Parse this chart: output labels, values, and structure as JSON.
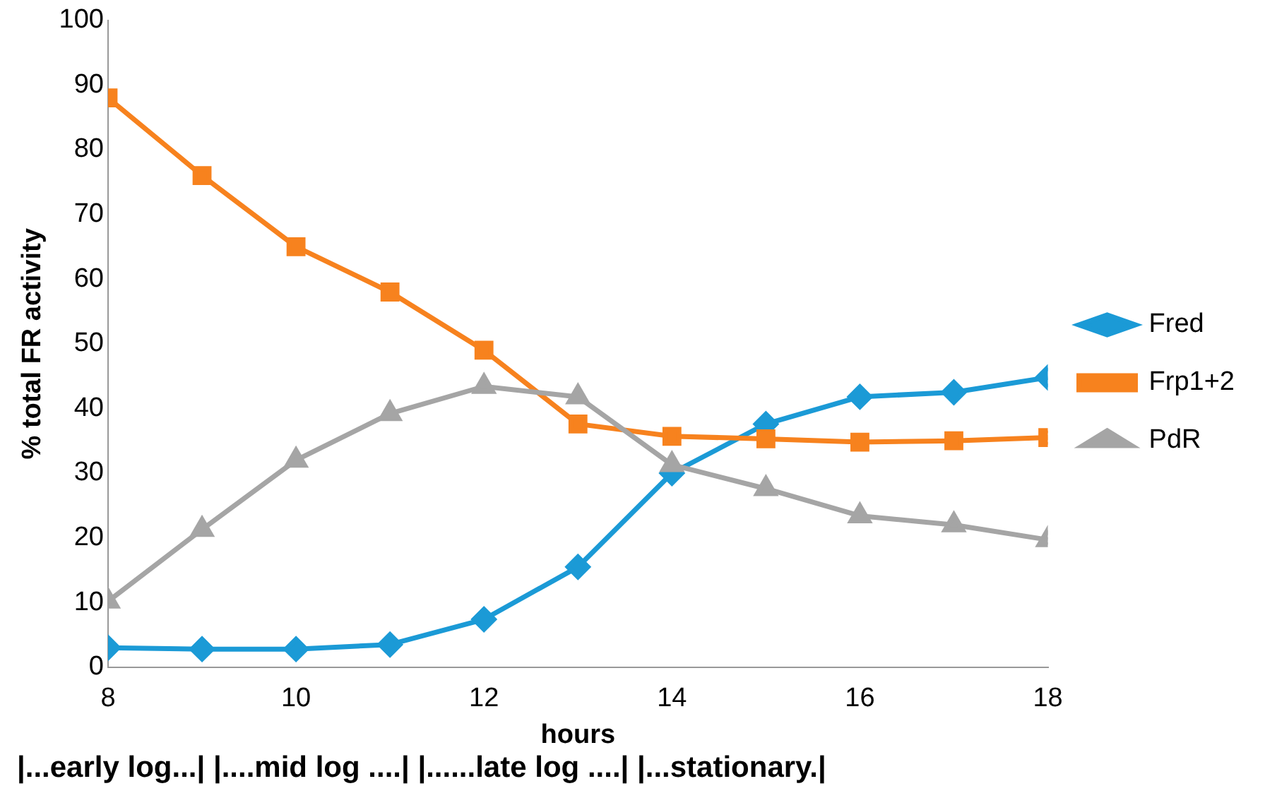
{
  "chart_data": {
    "type": "line",
    "xlabel": "hours",
    "ylabel": "% total FR activity",
    "x": [
      8,
      9,
      10,
      11,
      12,
      13,
      14,
      15,
      16,
      17,
      18
    ],
    "series": [
      {
        "name": "Fred",
        "color": "#1b9ad6",
        "marker": "diamond",
        "values": [
          3.0,
          2.8,
          2.8,
          3.5,
          7.4,
          15.5,
          30,
          37.6,
          41.8,
          42.5,
          44.8
        ]
      },
      {
        "name": "Frp1+2",
        "color": "#f7821e",
        "marker": "square",
        "values": [
          88,
          76,
          65,
          58,
          49,
          37.6,
          35.7,
          35.3,
          34.8,
          35,
          35.5
        ]
      },
      {
        "name": "PdR",
        "color": "#a5a5a5",
        "marker": "triangle",
        "values": [
          10.2,
          21.3,
          32,
          39.2,
          43.4,
          41.8,
          31.3,
          27.6,
          23.4,
          22,
          19.7
        ]
      }
    ],
    "xlim": [
      8,
      18
    ],
    "xticks": [
      8,
      10,
      12,
      14,
      16,
      18
    ],
    "ylim": [
      0,
      100
    ],
    "yticks": [
      0,
      10,
      20,
      30,
      40,
      50,
      60,
      70,
      80,
      90,
      100
    ],
    "grid": false,
    "legend": "right",
    "line_style": "solid",
    "annotations": [
      "|...early log...| |....mid log ....| |......late log ....| |...stationary.|"
    ]
  }
}
